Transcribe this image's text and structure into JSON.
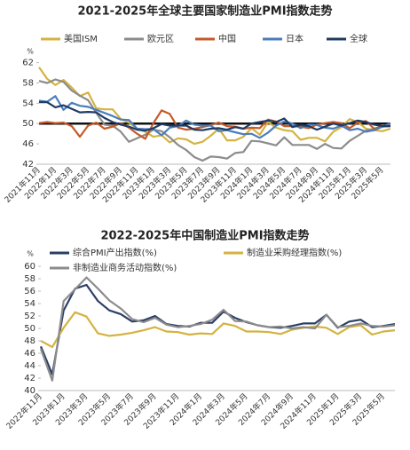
{
  "chart_data": [
    {
      "type": "line",
      "title": "2021-2025年全球主要国家制造业PMI指数走势",
      "y_label": "%",
      "categories": [
        "2021年11月",
        null,
        "2022年1月",
        null,
        "2022年3月",
        null,
        "2022年5月",
        null,
        "2022年7月",
        null,
        "2022年9月",
        null,
        "2022年11月",
        null,
        "2023年1月",
        null,
        "2023年3月",
        null,
        "2023年5月",
        null,
        "2023年7月",
        null,
        "2023年9月",
        null,
        "2023年11月",
        null,
        "2024年1月",
        null,
        "2024年3月",
        null,
        "2024年5月",
        null,
        "2024年7月",
        null,
        "2024年9月",
        null,
        "2024年11月",
        null,
        "2025年1月",
        null,
        "2025年3月",
        null,
        "2025年5月",
        null
      ],
      "ylim": [
        42,
        63.5
      ],
      "yticks": [
        42,
        46,
        50,
        54,
        58,
        62
      ],
      "hline": 50,
      "series": [
        {
          "name": "美国ISM",
          "color": "#d4b341",
          "values": [
            61.1,
            58.8,
            57.6,
            58.6,
            57.1,
            55.4,
            56.1,
            53.0,
            52.8,
            52.8,
            50.9,
            50.2,
            49.0,
            48.4,
            47.4,
            47.7,
            46.3,
            47.1,
            46.9,
            46.0,
            46.4,
            47.6,
            49.0,
            46.7,
            46.7,
            47.4,
            49.1,
            47.8,
            50.3,
            49.2,
            48.7,
            48.5,
            46.8,
            47.2,
            47.2,
            46.5,
            48.4,
            49.3,
            50.9,
            50.3,
            49.0,
            48.7,
            48.5,
            49.0
          ]
        },
        {
          "name": "欧元区",
          "color": "#8c8c8c",
          "values": [
            58.4,
            58.0,
            58.7,
            58.2,
            56.5,
            55.5,
            54.6,
            52.1,
            49.8,
            49.6,
            48.4,
            46.4,
            47.1,
            47.8,
            48.8,
            48.5,
            47.3,
            45.8,
            44.8,
            43.4,
            42.7,
            43.5,
            43.4,
            43.1,
            44.2,
            44.4,
            46.6,
            46.5,
            46.1,
            45.7,
            47.3,
            45.8,
            45.8,
            45.8,
            45.0,
            46.0,
            45.2,
            45.1,
            46.6,
            47.6,
            48.6,
            49.0,
            49.4,
            49.5
          ]
        },
        {
          "name": "中国",
          "color": "#c55a2a",
          "values": [
            50.1,
            50.3,
            50.1,
            50.2,
            49.5,
            47.4,
            49.6,
            50.2,
            49.0,
            49.4,
            50.1,
            49.2,
            48.0,
            47.0,
            50.1,
            52.6,
            51.9,
            49.2,
            48.8,
            49.0,
            49.3,
            49.7,
            50.2,
            49.5,
            49.4,
            49.0,
            49.2,
            49.1,
            50.8,
            50.4,
            49.5,
            49.5,
            49.4,
            49.1,
            49.8,
            50.1,
            50.3,
            50.1,
            49.1,
            50.2,
            50.5,
            49.0,
            49.5,
            49.7
          ]
        },
        {
          "name": "日本",
          "color": "#4a7ebb",
          "values": [
            54.5,
            54.3,
            55.4,
            52.7,
            54.1,
            53.5,
            53.3,
            52.7,
            52.1,
            51.5,
            50.8,
            50.7,
            49.0,
            48.9,
            48.9,
            47.7,
            49.2,
            49.5,
            50.6,
            49.8,
            49.6,
            49.6,
            48.5,
            48.7,
            48.3,
            47.9,
            48.0,
            47.2,
            48.2,
            49.6,
            50.4,
            50.0,
            49.1,
            49.8,
            49.7,
            49.2,
            49.0,
            49.6,
            48.7,
            49.0,
            48.4,
            48.7,
            49.4,
            50.1
          ]
        },
        {
          "name": "全球",
          "color": "#1f3b63",
          "values": [
            54.2,
            54.2,
            53.2,
            53.6,
            52.9,
            52.2,
            52.3,
            52.2,
            51.1,
            50.3,
            49.8,
            49.4,
            48.8,
            48.6,
            49.1,
            49.9,
            49.6,
            49.6,
            49.6,
            48.8,
            48.7,
            49.0,
            49.1,
            48.8,
            49.3,
            49.0,
            50.0,
            50.3,
            50.6,
            50.3,
            51.0,
            49.3,
            49.7,
            49.5,
            48.8,
            49.4,
            50.0,
            49.6,
            50.1,
            50.6,
            50.3,
            49.8,
            49.5,
            49.5
          ]
        }
      ]
    },
    {
      "type": "line",
      "title": "2022-2025年中国制造业PMI指数走势",
      "y_label": "%",
      "categories": [
        "2022年11月",
        null,
        "2023年1月",
        null,
        "2023年3月",
        null,
        "2023年5月",
        null,
        "2023年7月",
        null,
        "2023年9月",
        null,
        "2023年11月",
        null,
        "2024年1月",
        null,
        "2024年3月",
        null,
        "2024年5月",
        null,
        "2024年7月",
        null,
        "2024年9月",
        null,
        "2024年11月",
        null,
        "2025年1月",
        null,
        "2025年3月",
        null,
        "2025年5月",
        null
      ],
      "ylim": [
        40,
        60
      ],
      "yticks": [
        40,
        42,
        44,
        46,
        48,
        50,
        52,
        54,
        56,
        58,
        60
      ],
      "series": [
        {
          "name": "综合PMI产出指数(%)",
          "color": "#2b3f66",
          "values": [
            47.1,
            42.6,
            52.9,
            56.4,
            57.0,
            54.4,
            52.9,
            52.3,
            51.1,
            51.3,
            52.0,
            50.7,
            50.4,
            50.3,
            50.9,
            50.9,
            52.7,
            51.7,
            51.0,
            50.5,
            50.2,
            50.1,
            50.4,
            50.8,
            50.8,
            52.2,
            50.1,
            51.1,
            51.4,
            50.2,
            50.4,
            50.7
          ]
        },
        {
          "name": "制造业采购经理指数(%)",
          "color": "#d4b341",
          "values": [
            48.0,
            47.0,
            50.1,
            52.6,
            51.9,
            49.2,
            48.8,
            49.0,
            49.3,
            49.7,
            50.2,
            49.5,
            49.4,
            49.0,
            49.2,
            49.1,
            50.8,
            50.4,
            49.5,
            49.5,
            49.4,
            49.1,
            49.8,
            50.1,
            50.3,
            50.1,
            49.1,
            50.2,
            50.5,
            49.0,
            49.5,
            49.7
          ]
        },
        {
          "name": "非制造业商务活动指数(%)",
          "color": "#8c8c8c",
          "values": [
            46.7,
            41.6,
            54.4,
            56.3,
            58.2,
            56.4,
            54.5,
            53.2,
            51.5,
            51.0,
            51.7,
            50.6,
            50.2,
            50.4,
            50.7,
            51.4,
            53.0,
            51.2,
            51.1,
            50.5,
            50.2,
            50.3,
            50.0,
            50.2,
            50.0,
            52.2,
            50.2,
            50.4,
            50.8,
            50.4,
            50.3,
            50.5
          ]
        }
      ]
    }
  ]
}
